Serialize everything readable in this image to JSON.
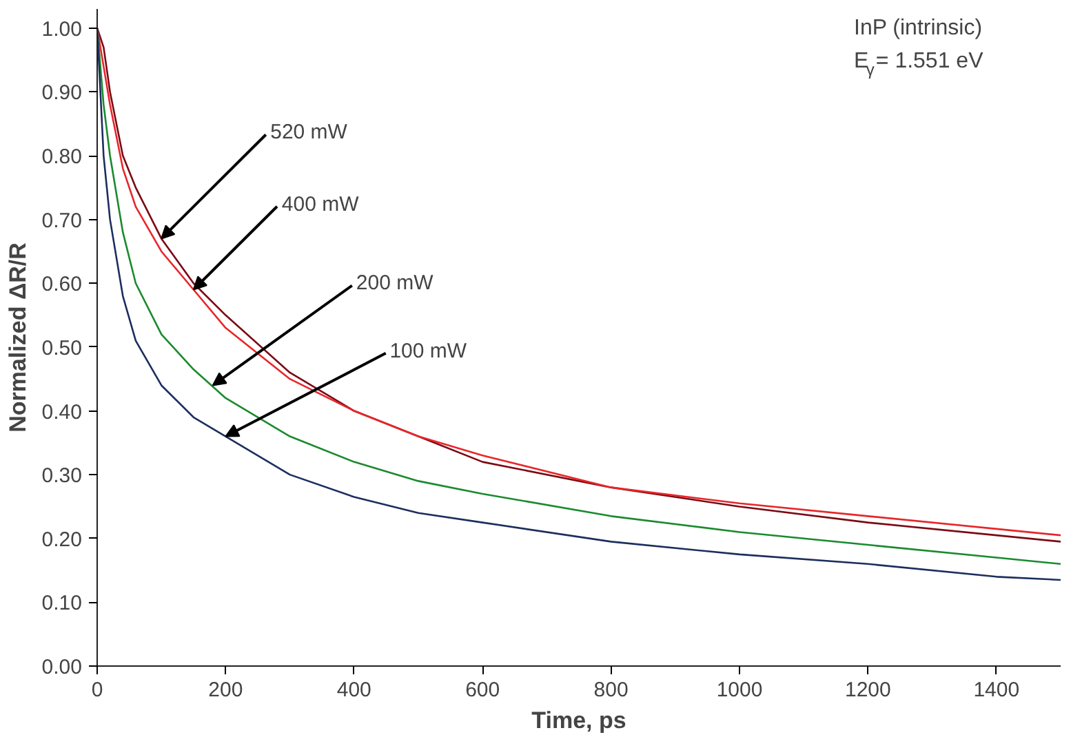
{
  "chart_data": {
    "type": "line",
    "xlabel": "Time, ps",
    "ylabel": "Normalized ΔR/R",
    "x": [
      0,
      10,
      20,
      40,
      60,
      100,
      150,
      200,
      300,
      400,
      500,
      600,
      800,
      1000,
      1200,
      1400,
      1500
    ],
    "series": [
      {
        "color": "#7b0a14",
        "values": [
          1.0,
          0.97,
          0.9,
          0.8,
          0.75,
          0.67,
          0.6,
          0.55,
          0.46,
          0.4,
          0.36,
          0.32,
          0.28,
          0.25,
          0.225,
          0.205,
          0.195
        ]
      },
      {
        "color": "#e8262a",
        "values": [
          1.0,
          0.94,
          0.88,
          0.78,
          0.72,
          0.65,
          0.59,
          0.53,
          0.45,
          0.4,
          0.36,
          0.33,
          0.28,
          0.255,
          0.235,
          0.215,
          0.205
        ]
      },
      {
        "color": "#1a8a2e",
        "values": [
          1.0,
          0.88,
          0.8,
          0.68,
          0.6,
          0.52,
          0.465,
          0.42,
          0.36,
          0.32,
          0.29,
          0.27,
          0.235,
          0.21,
          0.19,
          0.17,
          0.16
        ]
      },
      {
        "color": "#1c2e5e",
        "values": [
          1.0,
          0.8,
          0.7,
          0.58,
          0.51,
          0.44,
          0.39,
          0.36,
          0.3,
          0.265,
          0.24,
          0.225,
          0.195,
          0.175,
          0.16,
          0.14,
          0.135
        ]
      }
    ],
    "annotations": [
      {
        "text": "520 mW",
        "x": 100,
        "y": 0.67
      },
      {
        "text": "400 mW",
        "x": 150,
        "y": 0.59
      },
      {
        "text": "200 mW",
        "x": 180,
        "y": 0.44
      },
      {
        "text": "100 mW",
        "x": 200,
        "y": 0.36
      },
      "InP (intrinsic)",
      "E$_{γ}$= 1.551 eV"
    ],
    "xlim": [
      0,
      1500
    ],
    "ylim": [
      0,
      1.03
    ],
    "xticks": [
      0,
      200,
      400,
      600,
      800,
      1000,
      1200,
      1400
    ],
    "yticks": [
      {
        "value": 0,
        "label": "0.00"
      },
      {
        "value": 0.1,
        "label": "0.10"
      },
      {
        "value": 0.2,
        "label": "0.20"
      },
      {
        "value": 0.3,
        "label": "0.30"
      },
      {
        "value": 0.4,
        "label": "0.40"
      },
      {
        "value": 0.5,
        "label": "0.50"
      },
      {
        "value": 0.6,
        "label": "0.60"
      },
      {
        "value": 0.7,
        "label": "0.70"
      },
      {
        "value": 0.8,
        "label": "0.80"
      },
      {
        "value": 0.9,
        "label": "0.90"
      },
      {
        "value": 1.0,
        "label": "1.00"
      }
    ],
    "grid": false,
    "marker": "none",
    "line_style": "solid"
  }
}
